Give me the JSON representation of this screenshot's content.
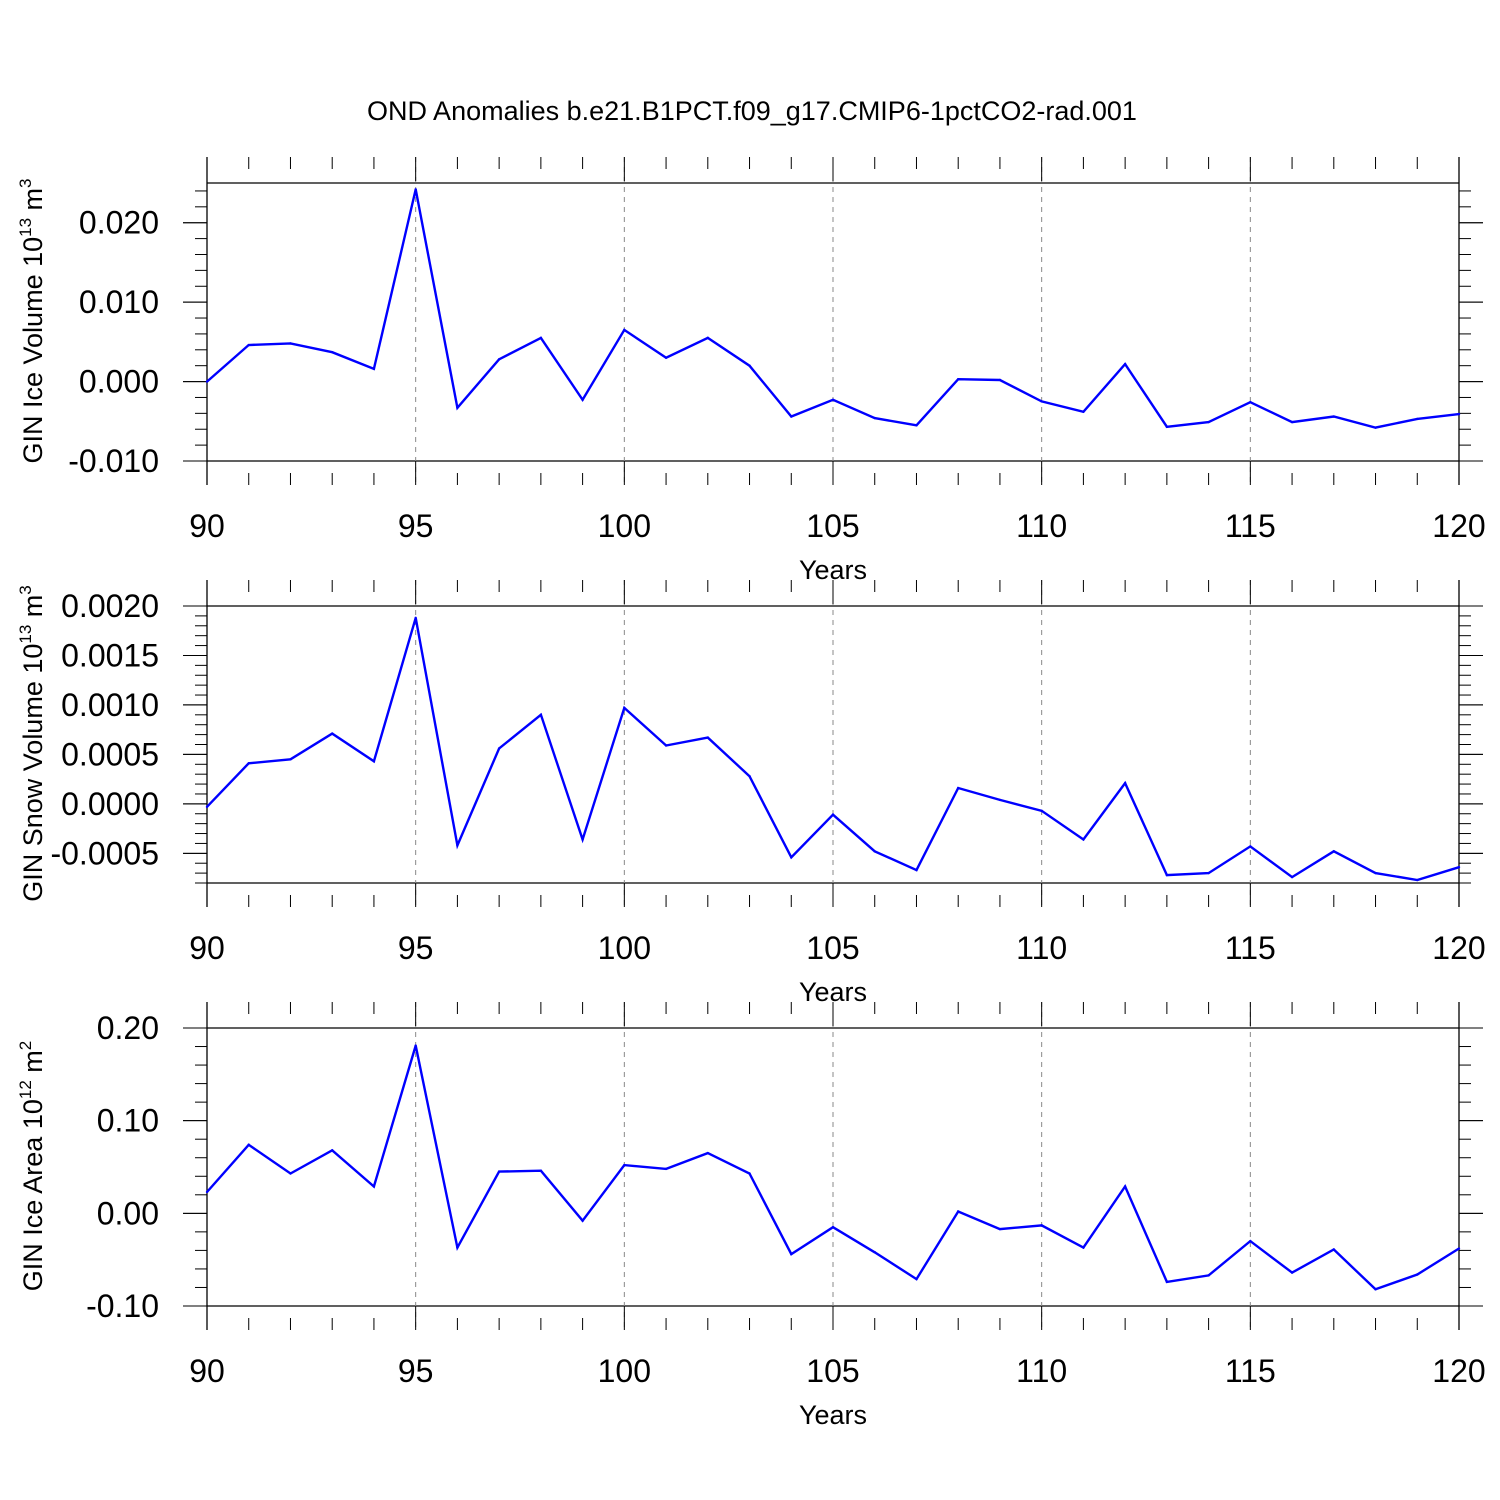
{
  "title": "OND Anomalies b.e21.B1PCT.f09_g17.CMIP6-1pctCO2-rad.001",
  "line_color": "#0000ff",
  "chart_data": [
    {
      "type": "line",
      "ylabel": "GIN Ice Volume 10",
      "ylabel_exponent": "13",
      "ylabel_unit": " m",
      "ylabel_unit_exponent": "3",
      "xlabel": "Years",
      "xlim": [
        90,
        120
      ],
      "ylim": [
        -0.01,
        0.025
      ],
      "xticks": [
        "90",
        "95",
        "100",
        "105",
        "110",
        "115",
        "120"
      ],
      "yticks": [
        {
          "value": 0.02,
          "label": "0.020"
        },
        {
          "value": 0.01,
          "label": "0.010"
        },
        {
          "value": 0.0,
          "label": "0.000"
        },
        {
          "value": -0.01,
          "label": "-0.010"
        }
      ],
      "series": [
        {
          "name": "GIN Ice Volume",
          "x": [
            90,
            91,
            92,
            93,
            94,
            95,
            96,
            97,
            98,
            99,
            100,
            101,
            102,
            103,
            104,
            105,
            106,
            107,
            108,
            109,
            110,
            111,
            112,
            113,
            114,
            115,
            116,
            117,
            118,
            119,
            120
          ],
          "values": [
            0.0,
            0.0046,
            0.0048,
            0.0037,
            0.0016,
            0.0242,
            -0.0033,
            0.0028,
            0.0055,
            -0.0023,
            0.0065,
            0.003,
            0.0055,
            0.002,
            -0.0044,
            -0.0023,
            -0.0046,
            -0.0055,
            0.0003,
            0.0002,
            -0.0025,
            -0.0038,
            0.0022,
            -0.0057,
            -0.0051,
            -0.0026,
            -0.0051,
            -0.0044,
            -0.0058,
            -0.0047,
            -0.0041
          ]
        }
      ]
    },
    {
      "type": "line",
      "ylabel": "GIN Snow Volume 10",
      "ylabel_exponent": "13",
      "ylabel_unit": " m",
      "ylabel_unit_exponent": "3",
      "xlabel": "Years",
      "xlim": [
        90,
        120
      ],
      "ylim": [
        -0.0008,
        0.002
      ],
      "xticks": [
        "90",
        "95",
        "100",
        "105",
        "110",
        "115",
        "120"
      ],
      "yticks": [
        {
          "value": 0.002,
          "label": "0.0020"
        },
        {
          "value": 0.0015,
          "label": "0.0015"
        },
        {
          "value": 0.001,
          "label": "0.0010"
        },
        {
          "value": 0.0005,
          "label": "0.0005"
        },
        {
          "value": 0.0,
          "label": "0.0000"
        },
        {
          "value": -0.0005,
          "label": "-0.0005"
        }
      ],
      "series": [
        {
          "name": "GIN Snow Volume",
          "x": [
            90,
            91,
            92,
            93,
            94,
            95,
            96,
            97,
            98,
            99,
            100,
            101,
            102,
            103,
            104,
            105,
            106,
            107,
            108,
            109,
            110,
            111,
            112,
            113,
            114,
            115,
            116,
            117,
            118,
            119,
            120
          ],
          "values": [
            -3e-05,
            0.00041,
            0.00045,
            0.00071,
            0.00043,
            0.00188,
            -0.00042,
            0.00056,
            0.0009,
            -0.00036,
            0.00097,
            0.00059,
            0.00067,
            0.00028,
            -0.00054,
            -0.00011,
            -0.00048,
            -0.00067,
            0.00016,
            4e-05,
            -7e-05,
            -0.00036,
            0.00021,
            -0.00072,
            -0.0007,
            -0.00043,
            -0.00074,
            -0.00048,
            -0.0007,
            -0.00077,
            -0.00064
          ]
        }
      ]
    },
    {
      "type": "line",
      "ylabel": "GIN Ice Area 10",
      "ylabel_exponent": "12",
      "ylabel_unit": " m",
      "ylabel_unit_exponent": "2",
      "xlabel": "Years",
      "xlim": [
        90,
        120
      ],
      "ylim": [
        -0.1,
        0.2
      ],
      "xticks": [
        "90",
        "95",
        "100",
        "105",
        "110",
        "115",
        "120"
      ],
      "yticks": [
        {
          "value": 0.2,
          "label": "0.20"
        },
        {
          "value": 0.1,
          "label": "0.10"
        },
        {
          "value": 0.0,
          "label": "0.00"
        },
        {
          "value": -0.1,
          "label": "-0.10"
        }
      ],
      "series": [
        {
          "name": "GIN Ice Area",
          "x": [
            90,
            91,
            92,
            93,
            94,
            95,
            96,
            97,
            98,
            99,
            100,
            101,
            102,
            103,
            104,
            105,
            106,
            107,
            108,
            109,
            110,
            111,
            112,
            113,
            114,
            115,
            116,
            117,
            118,
            119,
            120
          ],
          "values": [
            0.023,
            0.074,
            0.043,
            0.068,
            0.029,
            0.181,
            -0.037,
            0.045,
            0.046,
            -0.008,
            0.052,
            0.048,
            0.065,
            0.043,
            -0.044,
            -0.015,
            -0.042,
            -0.071,
            0.002,
            -0.017,
            -0.013,
            -0.037,
            0.029,
            -0.074,
            -0.067,
            -0.03,
            -0.064,
            -0.039,
            -0.082,
            -0.066,
            -0.038
          ]
        }
      ]
    }
  ]
}
